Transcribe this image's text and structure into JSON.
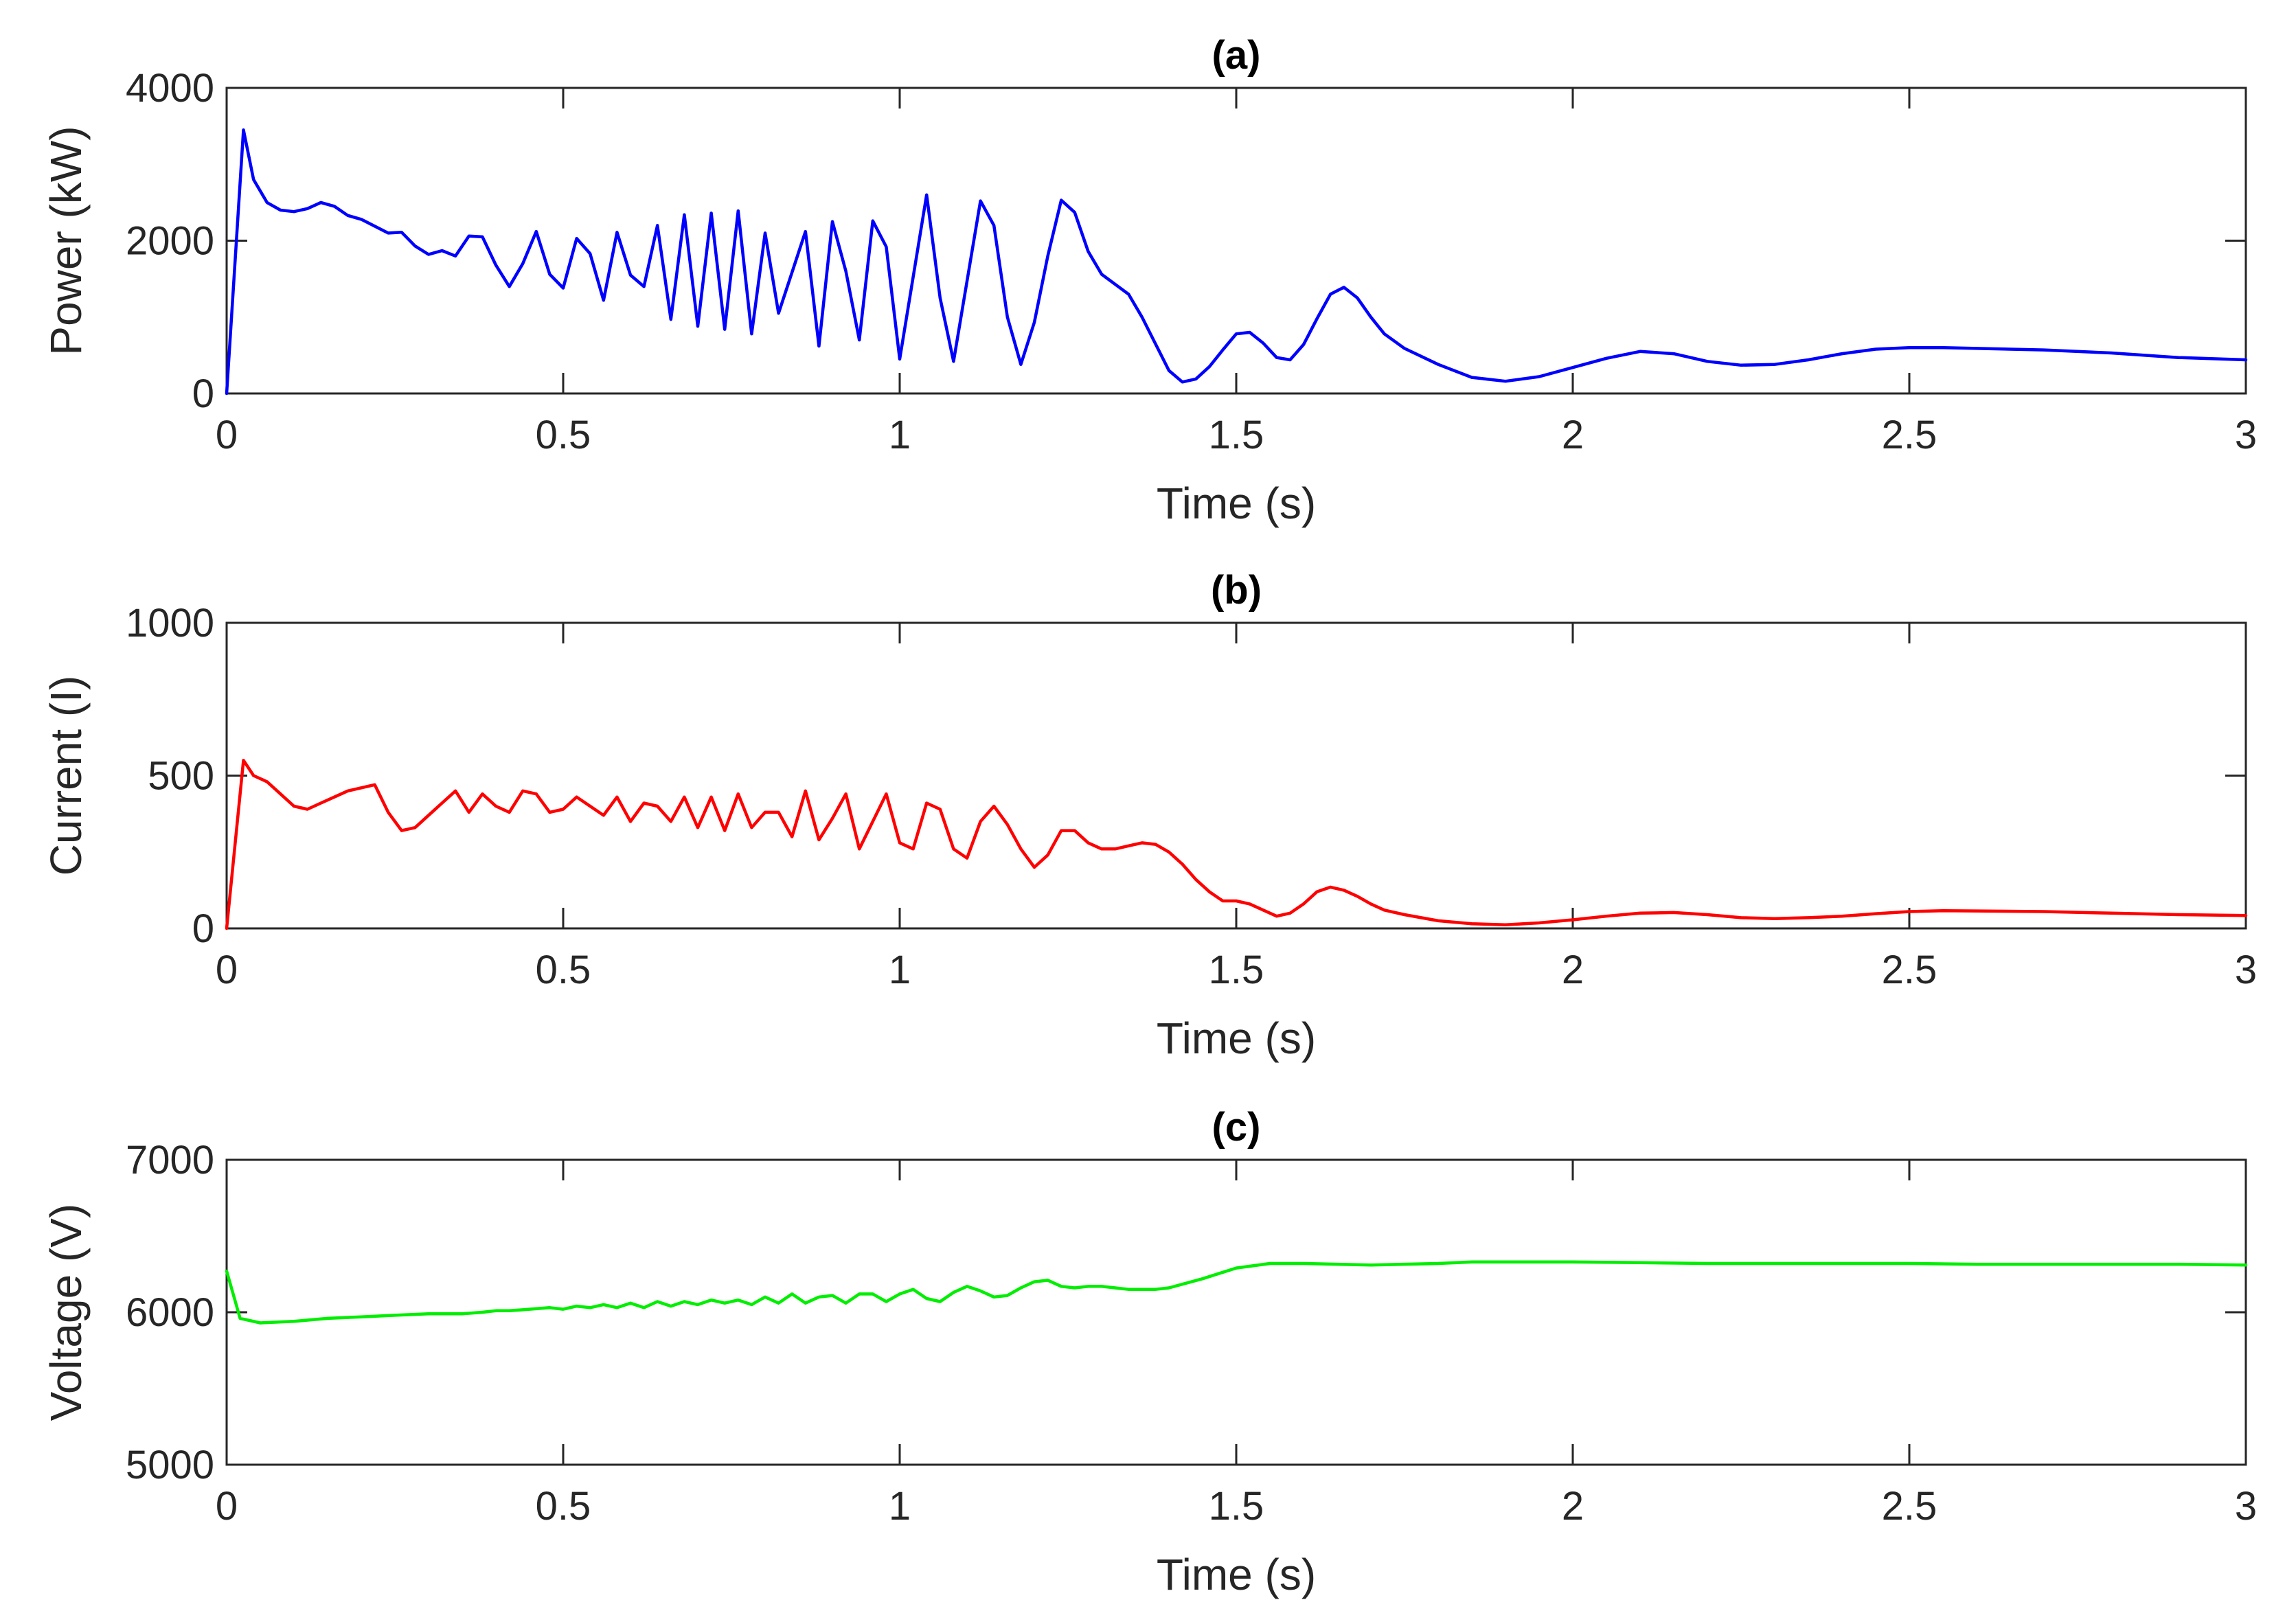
{
  "chart_data": [
    {
      "type": "line",
      "title": "(a)",
      "xlabel": "Time (s)",
      "ylabel": "Power (kW)",
      "xlim": [
        0,
        3
      ],
      "ylim": [
        0,
        4000
      ],
      "xticks": [
        0,
        0.5,
        1,
        1.5,
        2,
        2.5,
        3
      ],
      "xtick_labels": [
        "0",
        "0.5",
        "1",
        "1.5",
        "2",
        "2.5",
        "3"
      ],
      "yticks": [
        0,
        2000,
        4000
      ],
      "ytick_labels": [
        "0",
        "2000",
        "4000"
      ],
      "grid": false,
      "color": "#0000FF",
      "series": [
        {
          "name": "Power",
          "x": [
            0,
            0.025,
            0.04,
            0.06,
            0.08,
            0.1,
            0.12,
            0.14,
            0.16,
            0.18,
            0.2,
            0.24,
            0.26,
            0.28,
            0.3,
            0.32,
            0.34,
            0.36,
            0.38,
            0.4,
            0.42,
            0.44,
            0.46,
            0.48,
            0.5,
            0.52,
            0.54,
            0.56,
            0.58,
            0.6,
            0.62,
            0.64,
            0.66,
            0.68,
            0.7,
            0.72,
            0.74,
            0.76,
            0.78,
            0.8,
            0.82,
            0.86,
            0.88,
            0.9,
            0.92,
            0.94,
            0.96,
            0.98,
            1.0,
            1.04,
            1.06,
            1.08,
            1.12,
            1.14,
            1.16,
            1.18,
            1.2,
            1.22,
            1.24,
            1.26,
            1.28,
            1.3,
            1.34,
            1.36,
            1.38,
            1.4,
            1.42,
            1.44,
            1.46,
            1.48,
            1.5,
            1.52,
            1.54,
            1.56,
            1.58,
            1.6,
            1.62,
            1.64,
            1.66,
            1.68,
            1.7,
            1.72,
            1.75,
            1.8,
            1.85,
            1.9,
            1.95,
            2.0,
            2.05,
            2.1,
            2.15,
            2.2,
            2.25,
            2.3,
            2.35,
            2.4,
            2.45,
            2.5,
            2.55,
            2.6,
            2.7,
            2.8,
            2.9,
            3.0
          ],
          "y": [
            0,
            3450,
            2800,
            2500,
            2400,
            2380,
            2420,
            2500,
            2450,
            2330,
            2280,
            2100,
            2110,
            1930,
            1820,
            1870,
            1800,
            2060,
            2050,
            1680,
            1400,
            1700,
            2120,
            1560,
            1380,
            2030,
            1830,
            1220,
            2110,
            1550,
            1400,
            2200,
            970,
            2340,
            880,
            2360,
            840,
            2390,
            780,
            2100,
            1050,
            2120,
            620,
            2250,
            1600,
            700,
            2260,
            1920,
            450,
            2600,
            1250,
            420,
            2520,
            2200,
            1000,
            380,
            930,
            1800,
            2530,
            2370,
            1860,
            1560,
            1300,
            1000,
            650,
            300,
            150,
            190,
            350,
            570,
            780,
            800,
            660,
            470,
            440,
            640,
            980,
            1300,
            1390,
            1250,
            1000,
            780,
            590,
            380,
            210,
            160,
            220,
            340,
            460,
            550,
            520,
            420,
            370,
            380,
            440,
            520,
            580,
            600,
            600,
            590,
            570,
            530,
            470,
            440
          ]
        }
      ]
    },
    {
      "type": "line",
      "title": "(b)",
      "xlabel": "Time (s)",
      "ylabel": "Current (I)",
      "xlim": [
        0,
        3
      ],
      "ylim": [
        0,
        1000
      ],
      "xticks": [
        0,
        0.5,
        1,
        1.5,
        2,
        2.5,
        3
      ],
      "xtick_labels": [
        "0",
        "0.5",
        "1",
        "1.5",
        "2",
        "2.5",
        "3"
      ],
      "yticks": [
        0,
        500,
        1000
      ],
      "ytick_labels": [
        "0",
        "500",
        "1000"
      ],
      "grid": false,
      "color": "#FF0000",
      "series": [
        {
          "name": "Current",
          "x": [
            0,
            0.025,
            0.04,
            0.06,
            0.08,
            0.1,
            0.12,
            0.14,
            0.16,
            0.18,
            0.22,
            0.24,
            0.26,
            0.28,
            0.3,
            0.32,
            0.34,
            0.36,
            0.38,
            0.4,
            0.42,
            0.44,
            0.46,
            0.48,
            0.5,
            0.52,
            0.54,
            0.56,
            0.58,
            0.6,
            0.62,
            0.64,
            0.66,
            0.68,
            0.7,
            0.72,
            0.74,
            0.76,
            0.78,
            0.8,
            0.82,
            0.84,
            0.86,
            0.88,
            0.9,
            0.92,
            0.94,
            0.96,
            0.98,
            1.0,
            1.02,
            1.04,
            1.06,
            1.08,
            1.1,
            1.12,
            1.14,
            1.16,
            1.18,
            1.2,
            1.22,
            1.24,
            1.26,
            1.28,
            1.3,
            1.32,
            1.34,
            1.36,
            1.38,
            1.4,
            1.42,
            1.44,
            1.46,
            1.48,
            1.5,
            1.52,
            1.54,
            1.56,
            1.58,
            1.6,
            1.62,
            1.64,
            1.66,
            1.68,
            1.7,
            1.72,
            1.75,
            1.8,
            1.85,
            1.9,
            1.95,
            2.0,
            2.05,
            2.1,
            2.15,
            2.2,
            2.25,
            2.3,
            2.35,
            2.4,
            2.45,
            2.5,
            2.55,
            2.6,
            2.7,
            2.8,
            2.9,
            3.0
          ],
          "y": [
            0,
            550,
            500,
            480,
            440,
            400,
            390,
            410,
            430,
            450,
            470,
            380,
            320,
            330,
            370,
            410,
            450,
            380,
            440,
            400,
            380,
            450,
            440,
            380,
            390,
            430,
            400,
            370,
            430,
            350,
            410,
            400,
            350,
            430,
            330,
            430,
            320,
            440,
            330,
            380,
            380,
            300,
            450,
            290,
            360,
            440,
            260,
            350,
            440,
            280,
            260,
            410,
            390,
            260,
            230,
            350,
            400,
            340,
            260,
            200,
            240,
            320,
            320,
            280,
            260,
            260,
            270,
            280,
            275,
            250,
            210,
            160,
            120,
            90,
            90,
            80,
            60,
            40,
            50,
            80,
            120,
            135,
            125,
            105,
            80,
            60,
            45,
            25,
            15,
            12,
            18,
            28,
            40,
            50,
            52,
            45,
            35,
            32,
            35,
            40,
            48,
            55,
            58,
            57,
            55,
            50,
            45,
            42
          ]
        }
      ]
    },
    {
      "type": "line",
      "title": "(c)",
      "xlabel": "Time (s)",
      "ylabel": "Voltage (V)",
      "xlim": [
        0,
        3
      ],
      "ylim": [
        5000,
        7000
      ],
      "xticks": [
        0,
        0.5,
        1,
        1.5,
        2,
        2.5,
        3
      ],
      "xtick_labels": [
        "0",
        "0.5",
        "1",
        "1.5",
        "2",
        "2.5",
        "3"
      ],
      "yticks": [
        5000,
        6000,
        7000
      ],
      "ytick_labels": [
        "5000",
        "6000",
        "7000"
      ],
      "grid": false,
      "color": "#00EE00",
      "series": [
        {
          "name": "Voltage",
          "x": [
            0,
            0.02,
            0.05,
            0.1,
            0.15,
            0.2,
            0.25,
            0.3,
            0.35,
            0.38,
            0.4,
            0.42,
            0.45,
            0.48,
            0.5,
            0.52,
            0.54,
            0.56,
            0.58,
            0.6,
            0.62,
            0.64,
            0.66,
            0.68,
            0.7,
            0.72,
            0.74,
            0.76,
            0.78,
            0.8,
            0.82,
            0.84,
            0.86,
            0.88,
            0.9,
            0.92,
            0.94,
            0.96,
            0.98,
            1.0,
            1.02,
            1.04,
            1.06,
            1.08,
            1.1,
            1.12,
            1.14,
            1.16,
            1.18,
            1.2,
            1.22,
            1.24,
            1.26,
            1.28,
            1.3,
            1.32,
            1.34,
            1.36,
            1.38,
            1.4,
            1.45,
            1.5,
            1.55,
            1.6,
            1.7,
            1.8,
            1.85,
            1.9,
            2.0,
            2.1,
            2.2,
            2.3,
            2.4,
            2.5,
            2.6,
            2.7,
            2.8,
            2.9,
            3.0
          ],
          "y": [
            6270,
            5960,
            5930,
            5940,
            5960,
            5970,
            5980,
            5990,
            5990,
            6000,
            6010,
            6010,
            6020,
            6030,
            6020,
            6040,
            6030,
            6050,
            6030,
            6060,
            6030,
            6070,
            6040,
            6070,
            6050,
            6080,
            6060,
            6080,
            6050,
            6100,
            6060,
            6120,
            6060,
            6100,
            6110,
            6060,
            6120,
            6120,
            6070,
            6120,
            6150,
            6090,
            6070,
            6130,
            6170,
            6140,
            6100,
            6110,
            6160,
            6200,
            6210,
            6170,
            6160,
            6170,
            6170,
            6160,
            6150,
            6150,
            6150,
            6160,
            6220,
            6290,
            6320,
            6320,
            6310,
            6320,
            6330,
            6330,
            6330,
            6325,
            6320,
            6320,
            6320,
            6320,
            6315,
            6315,
            6315,
            6315,
            6310
          ]
        }
      ]
    }
  ]
}
